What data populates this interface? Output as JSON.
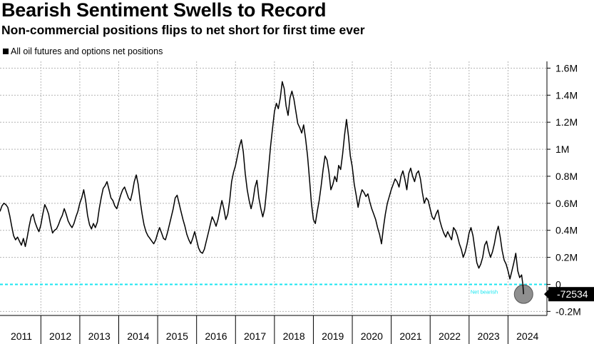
{
  "header": {
    "title": "Bearish Sentiment Swells to Record",
    "subtitle": "Non-commercial positions flips to net short for first time ever"
  },
  "chart_data": {
    "type": "line",
    "title": "Bearish Sentiment Swells to Record",
    "subtitle": "Non-commercial positions flips to net short for first time ever",
    "legend": [
      "All oil futures and options net positions"
    ],
    "legend_position": "top-left",
    "x_tick_labels": [
      "2011",
      "2012",
      "2013",
      "2014",
      "2015",
      "2016",
      "2017",
      "2018",
      "2019",
      "2020",
      "2021",
      "2022",
      "2023",
      "2024"
    ],
    "xlim": [
      2010.95,
      2025.0
    ],
    "y_tick_labels": [
      "1.6M",
      "1.4M",
      "1.2M",
      "1M",
      "0.8M",
      "0.6M",
      "0.4M",
      "0.2M",
      "0",
      "-0.2M"
    ],
    "y_tick_values": [
      1600000,
      1400000,
      1200000,
      1000000,
      800000,
      600000,
      400000,
      200000,
      0,
      -200000
    ],
    "ylim": [
      -230000,
      1650000
    ],
    "reference_line": {
      "value": 0,
      "label": "Net bearish",
      "color": "#19e6f0"
    },
    "last_value_label": "-72534",
    "last_value": -72534,
    "grid": true,
    "series": [
      {
        "name": "All oil futures and options net positions",
        "color": "#000000",
        "points": [
          [
            2010.95,
            540000
          ],
          [
            2011.0,
            580000
          ],
          [
            2011.05,
            600000
          ],
          [
            2011.1,
            590000
          ],
          [
            2011.15,
            570000
          ],
          [
            2011.2,
            510000
          ],
          [
            2011.25,
            430000
          ],
          [
            2011.3,
            360000
          ],
          [
            2011.35,
            330000
          ],
          [
            2011.4,
            350000
          ],
          [
            2011.45,
            320000
          ],
          [
            2011.5,
            290000
          ],
          [
            2011.55,
            340000
          ],
          [
            2011.6,
            280000
          ],
          [
            2011.65,
            350000
          ],
          [
            2011.7,
            430000
          ],
          [
            2011.75,
            500000
          ],
          [
            2011.8,
            520000
          ],
          [
            2011.85,
            460000
          ],
          [
            2011.9,
            420000
          ],
          [
            2011.95,
            390000
          ],
          [
            2012.0,
            440000
          ],
          [
            2012.05,
            520000
          ],
          [
            2012.1,
            590000
          ],
          [
            2012.15,
            560000
          ],
          [
            2012.2,
            520000
          ],
          [
            2012.25,
            440000
          ],
          [
            2012.3,
            380000
          ],
          [
            2012.35,
            400000
          ],
          [
            2012.4,
            410000
          ],
          [
            2012.45,
            440000
          ],
          [
            2012.5,
            480000
          ],
          [
            2012.55,
            510000
          ],
          [
            2012.6,
            560000
          ],
          [
            2012.65,
            520000
          ],
          [
            2012.7,
            470000
          ],
          [
            2012.75,
            440000
          ],
          [
            2012.8,
            420000
          ],
          [
            2012.85,
            450000
          ],
          [
            2012.9,
            500000
          ],
          [
            2012.95,
            540000
          ],
          [
            2013.0,
            600000
          ],
          [
            2013.05,
            640000
          ],
          [
            2013.1,
            700000
          ],
          [
            2013.15,
            620000
          ],
          [
            2013.2,
            510000
          ],
          [
            2013.25,
            440000
          ],
          [
            2013.3,
            410000
          ],
          [
            2013.35,
            450000
          ],
          [
            2013.4,
            420000
          ],
          [
            2013.45,
            460000
          ],
          [
            2013.5,
            560000
          ],
          [
            2013.55,
            640000
          ],
          [
            2013.6,
            710000
          ],
          [
            2013.65,
            730000
          ],
          [
            2013.7,
            760000
          ],
          [
            2013.75,
            700000
          ],
          [
            2013.8,
            640000
          ],
          [
            2013.85,
            620000
          ],
          [
            2013.9,
            580000
          ],
          [
            2013.95,
            560000
          ],
          [
            2014.0,
            610000
          ],
          [
            2014.05,
            660000
          ],
          [
            2014.1,
            700000
          ],
          [
            2014.15,
            720000
          ],
          [
            2014.2,
            680000
          ],
          [
            2014.25,
            640000
          ],
          [
            2014.3,
            620000
          ],
          [
            2014.35,
            680000
          ],
          [
            2014.4,
            760000
          ],
          [
            2014.45,
            810000
          ],
          [
            2014.5,
            740000
          ],
          [
            2014.55,
            620000
          ],
          [
            2014.6,
            520000
          ],
          [
            2014.65,
            440000
          ],
          [
            2014.7,
            390000
          ],
          [
            2014.75,
            360000
          ],
          [
            2014.8,
            340000
          ],
          [
            2014.85,
            320000
          ],
          [
            2014.9,
            300000
          ],
          [
            2014.95,
            330000
          ],
          [
            2015.0,
            380000
          ],
          [
            2015.05,
            420000
          ],
          [
            2015.1,
            380000
          ],
          [
            2015.15,
            340000
          ],
          [
            2015.2,
            330000
          ],
          [
            2015.25,
            380000
          ],
          [
            2015.3,
            440000
          ],
          [
            2015.35,
            500000
          ],
          [
            2015.4,
            560000
          ],
          [
            2015.45,
            640000
          ],
          [
            2015.5,
            660000
          ],
          [
            2015.55,
            600000
          ],
          [
            2015.6,
            540000
          ],
          [
            2015.65,
            480000
          ],
          [
            2015.7,
            430000
          ],
          [
            2015.75,
            370000
          ],
          [
            2015.8,
            330000
          ],
          [
            2015.85,
            300000
          ],
          [
            2015.9,
            340000
          ],
          [
            2015.95,
            390000
          ],
          [
            2016.0,
            330000
          ],
          [
            2016.05,
            270000
          ],
          [
            2016.1,
            240000
          ],
          [
            2016.15,
            230000
          ],
          [
            2016.2,
            260000
          ],
          [
            2016.25,
            320000
          ],
          [
            2016.3,
            380000
          ],
          [
            2016.35,
            440000
          ],
          [
            2016.4,
            500000
          ],
          [
            2016.45,
            470000
          ],
          [
            2016.5,
            430000
          ],
          [
            2016.55,
            480000
          ],
          [
            2016.6,
            550000
          ],
          [
            2016.65,
            620000
          ],
          [
            2016.7,
            560000
          ],
          [
            2016.75,
            480000
          ],
          [
            2016.8,
            520000
          ],
          [
            2016.85,
            620000
          ],
          [
            2016.9,
            760000
          ],
          [
            2016.95,
            830000
          ],
          [
            2017.0,
            880000
          ],
          [
            2017.05,
            950000
          ],
          [
            2017.1,
            1020000
          ],
          [
            2017.15,
            1070000
          ],
          [
            2017.2,
            980000
          ],
          [
            2017.25,
            820000
          ],
          [
            2017.3,
            700000
          ],
          [
            2017.35,
            620000
          ],
          [
            2017.4,
            560000
          ],
          [
            2017.45,
            620000
          ],
          [
            2017.5,
            720000
          ],
          [
            2017.55,
            770000
          ],
          [
            2017.6,
            640000
          ],
          [
            2017.65,
            560000
          ],
          [
            2017.7,
            500000
          ],
          [
            2017.75,
            560000
          ],
          [
            2017.8,
            700000
          ],
          [
            2017.85,
            860000
          ],
          [
            2017.9,
            1020000
          ],
          [
            2017.95,
            1150000
          ],
          [
            2018.0,
            1280000
          ],
          [
            2018.05,
            1340000
          ],
          [
            2018.1,
            1300000
          ],
          [
            2018.15,
            1380000
          ],
          [
            2018.2,
            1500000
          ],
          [
            2018.25,
            1450000
          ],
          [
            2018.3,
            1320000
          ],
          [
            2018.35,
            1250000
          ],
          [
            2018.4,
            1380000
          ],
          [
            2018.45,
            1430000
          ],
          [
            2018.5,
            1370000
          ],
          [
            2018.55,
            1280000
          ],
          [
            2018.6,
            1190000
          ],
          [
            2018.65,
            1160000
          ],
          [
            2018.7,
            1120000
          ],
          [
            2018.75,
            1180000
          ],
          [
            2018.8,
            1080000
          ],
          [
            2018.85,
            950000
          ],
          [
            2018.9,
            780000
          ],
          [
            2018.95,
            600000
          ],
          [
            2019.0,
            480000
          ],
          [
            2019.05,
            450000
          ],
          [
            2019.1,
            540000
          ],
          [
            2019.15,
            620000
          ],
          [
            2019.2,
            730000
          ],
          [
            2019.25,
            850000
          ],
          [
            2019.3,
            950000
          ],
          [
            2019.35,
            920000
          ],
          [
            2019.4,
            830000
          ],
          [
            2019.45,
            700000
          ],
          [
            2019.5,
            740000
          ],
          [
            2019.55,
            800000
          ],
          [
            2019.6,
            760000
          ],
          [
            2019.65,
            880000
          ],
          [
            2019.7,
            850000
          ],
          [
            2019.75,
            960000
          ],
          [
            2019.8,
            1100000
          ],
          [
            2019.85,
            1220000
          ],
          [
            2019.9,
            1100000
          ],
          [
            2019.95,
            950000
          ],
          [
            2020.0,
            870000
          ],
          [
            2020.05,
            740000
          ],
          [
            2020.1,
            660000
          ],
          [
            2020.15,
            570000
          ],
          [
            2020.2,
            650000
          ],
          [
            2020.25,
            700000
          ],
          [
            2020.3,
            680000
          ],
          [
            2020.35,
            650000
          ],
          [
            2020.4,
            670000
          ],
          [
            2020.45,
            610000
          ],
          [
            2020.5,
            560000
          ],
          [
            2020.55,
            520000
          ],
          [
            2020.6,
            480000
          ],
          [
            2020.65,
            420000
          ],
          [
            2020.7,
            370000
          ],
          [
            2020.75,
            300000
          ],
          [
            2020.8,
            420000
          ],
          [
            2020.85,
            520000
          ],
          [
            2020.9,
            600000
          ],
          [
            2020.95,
            650000
          ],
          [
            2021.0,
            700000
          ],
          [
            2021.05,
            740000
          ],
          [
            2021.1,
            780000
          ],
          [
            2021.15,
            760000
          ],
          [
            2021.2,
            720000
          ],
          [
            2021.25,
            800000
          ],
          [
            2021.3,
            840000
          ],
          [
            2021.35,
            780000
          ],
          [
            2021.4,
            700000
          ],
          [
            2021.45,
            820000
          ],
          [
            2021.5,
            860000
          ],
          [
            2021.55,
            800000
          ],
          [
            2021.6,
            760000
          ],
          [
            2021.65,
            820000
          ],
          [
            2021.7,
            840000
          ],
          [
            2021.75,
            780000
          ],
          [
            2021.8,
            680000
          ],
          [
            2021.85,
            600000
          ],
          [
            2021.9,
            640000
          ],
          [
            2021.95,
            620000
          ],
          [
            2022.0,
            560000
          ],
          [
            2022.05,
            500000
          ],
          [
            2022.1,
            480000
          ],
          [
            2022.15,
            520000
          ],
          [
            2022.2,
            550000
          ],
          [
            2022.25,
            470000
          ],
          [
            2022.3,
            420000
          ],
          [
            2022.35,
            380000
          ],
          [
            2022.4,
            350000
          ],
          [
            2022.45,
            390000
          ],
          [
            2022.5,
            360000
          ],
          [
            2022.55,
            330000
          ],
          [
            2022.6,
            420000
          ],
          [
            2022.65,
            400000
          ],
          [
            2022.7,
            360000
          ],
          [
            2022.75,
            300000
          ],
          [
            2022.8,
            260000
          ],
          [
            2022.85,
            200000
          ],
          [
            2022.9,
            240000
          ],
          [
            2022.95,
            300000
          ],
          [
            2023.0,
            380000
          ],
          [
            2023.05,
            420000
          ],
          [
            2023.1,
            360000
          ],
          [
            2023.15,
            260000
          ],
          [
            2023.2,
            160000
          ],
          [
            2023.25,
            120000
          ],
          [
            2023.3,
            150000
          ],
          [
            2023.35,
            200000
          ],
          [
            2023.4,
            290000
          ],
          [
            2023.45,
            320000
          ],
          [
            2023.5,
            250000
          ],
          [
            2023.55,
            200000
          ],
          [
            2023.6,
            240000
          ],
          [
            2023.65,
            300000
          ],
          [
            2023.7,
            380000
          ],
          [
            2023.75,
            430000
          ],
          [
            2023.8,
            350000
          ],
          [
            2023.85,
            250000
          ],
          [
            2023.9,
            180000
          ],
          [
            2023.95,
            150000
          ],
          [
            2024.0,
            100000
          ],
          [
            2024.05,
            40000
          ],
          [
            2024.1,
            100000
          ],
          [
            2024.15,
            160000
          ],
          [
            2024.2,
            230000
          ],
          [
            2024.25,
            100000
          ],
          [
            2024.3,
            50000
          ],
          [
            2024.35,
            70000
          ],
          [
            2024.38,
            0
          ],
          [
            2024.4,
            -72534
          ]
        ]
      }
    ]
  }
}
